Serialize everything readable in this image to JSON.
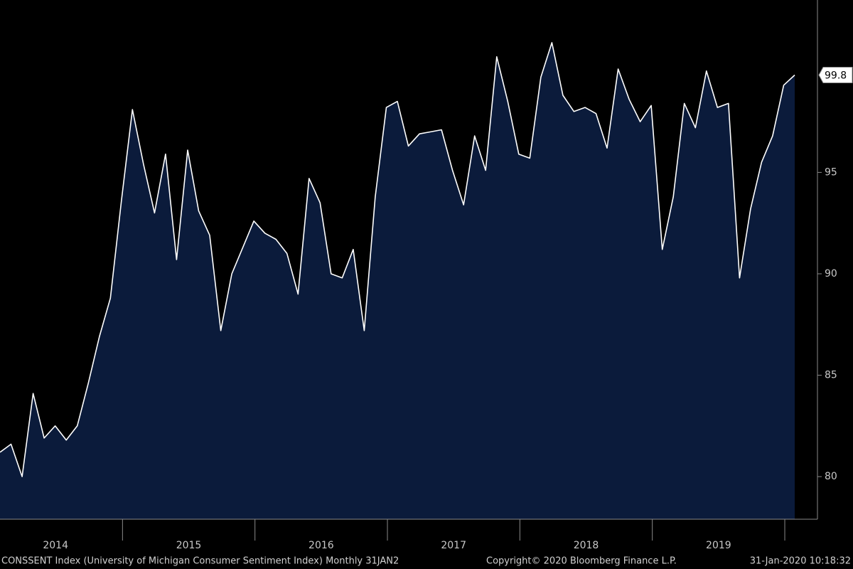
{
  "chart_data": {
    "type": "area",
    "color": "#0b1b3b",
    "line_color": "#ffffff",
    "year_labels": [
      "2014",
      "2015",
      "2016",
      "2017",
      "2018",
      "2019"
    ],
    "values": [
      81.2,
      81.6,
      80.0,
      84.1,
      81.9,
      82.5,
      81.8,
      82.5,
      84.6,
      86.9,
      88.8,
      93.6,
      98.1,
      95.4,
      93.0,
      95.9,
      90.7,
      96.1,
      93.1,
      91.9,
      87.2,
      90.0,
      91.3,
      92.6,
      92.0,
      91.7,
      91.0,
      89.0,
      94.7,
      93.5,
      90.0,
      89.8,
      91.2,
      87.2,
      93.8,
      98.2,
      98.5,
      96.3,
      96.9,
      97.0,
      97.1,
      95.1,
      93.4,
      96.8,
      95.1,
      100.7,
      98.5,
      95.9,
      95.7,
      99.7,
      101.4,
      98.8,
      98.0,
      98.2,
      97.9,
      96.2,
      100.1,
      98.6,
      97.5,
      98.3,
      91.2,
      93.8,
      98.4,
      97.2,
      100.0,
      98.2,
      98.4,
      89.8,
      93.2,
      95.5,
      96.8,
      99.3,
      99.8
    ],
    "ylim": [
      77.9,
      103.5
    ],
    "yticks": [
      80,
      85,
      90,
      95
    ],
    "y_axis_side": "right",
    "footer": {
      "description": "CONSSENT Index (University of Michigan Consumer Sentiment Index)  Monthly 31JAN2",
      "copyright": "Copyright© 2020 Bloomberg Finance L.P.",
      "timestamp": "31-Jan-2020 10:18:32"
    }
  }
}
